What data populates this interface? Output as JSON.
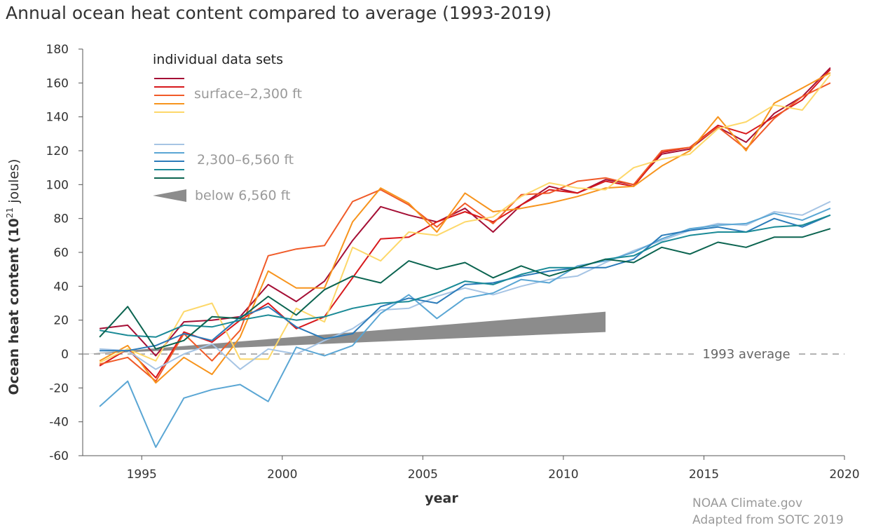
{
  "title": "Annual ocean heat content compared to average (1993-2019)",
  "credit": {
    "line1": "NOAA Climate.gov",
    "line2": "Adapted from SOTC 2019"
  },
  "chart_data": {
    "type": "line",
    "title": "Annual ocean heat content compared to average (1993-2019)",
    "xlabel": "year",
    "ylabel_main": "Ocean heat content (10",
    "ylabel_sup": "21",
    "ylabel_end": " joules)",
    "xlim": [
      1992.9,
      2020
    ],
    "ylim": [
      -60,
      180
    ],
    "xticks": [
      1995,
      2000,
      2005,
      2010,
      2015,
      2020
    ],
    "yticks": [
      -60,
      -40,
      -20,
      0,
      20,
      40,
      60,
      80,
      100,
      120,
      140,
      160,
      180
    ],
    "grid": false,
    "reference_line": {
      "y": 0,
      "label": "1993 average"
    },
    "legend": {
      "heading": "individual data sets",
      "groups": [
        {
          "label": "surface–2,300 ft",
          "colors": [
            "#a50f35",
            "#d7191c",
            "#f05a28",
            "#f7941d",
            "#fdd86a"
          ]
        },
        {
          "label": "2,300–6,560 ft",
          "colors": [
            "#a6c4e4",
            "#5aa6d4",
            "#2b7bb9",
            "#1a8a96",
            "#0b6450"
          ]
        },
        {
          "label": "below 6,560 ft",
          "colors": [
            "#8c8c8c"
          ]
        }
      ]
    },
    "x": [
      1993.5,
      1994.5,
      1995.5,
      1996.5,
      1997.5,
      1998.5,
      1999.5,
      2000.5,
      2001.5,
      2002.5,
      2003.5,
      2004.5,
      2005.5,
      2006.5,
      2007.5,
      2008.5,
      2009.5,
      2010.5,
      2011.5,
      2012.5,
      2013.5,
      2014.5,
      2015.5,
      2016.5,
      2017.5,
      2018.5,
      2019.5
    ],
    "series": [
      {
        "group": "surface–2,300 ft",
        "color": "#a50f35",
        "values": [
          15,
          17,
          -1,
          19,
          20,
          22,
          41,
          31,
          43,
          67,
          87,
          82,
          78,
          86,
          72,
          88,
          99,
          95,
          103,
          100,
          118,
          121,
          134,
          125,
          142,
          152,
          169
        ]
      },
      {
        "group": "surface–2,300 ft",
        "color": "#d7191c",
        "values": [
          -7,
          3,
          -14,
          13,
          7,
          20,
          30,
          15,
          22,
          45,
          68,
          69,
          78,
          84,
          78,
          88,
          97,
          95,
          102,
          99,
          119,
          122,
          135,
          130,
          140,
          150,
          168
        ]
      },
      {
        "group": "surface–2,300 ft",
        "color": "#f05a28",
        "values": [
          -6,
          -2,
          -16,
          12,
          -4,
          14,
          58,
          62,
          64,
          90,
          97,
          88,
          75,
          89,
          77,
          94,
          95,
          102,
          104,
          100,
          120,
          122,
          134,
          121,
          139,
          152,
          160
        ]
      },
      {
        "group": "surface–2,300 ft",
        "color": "#f7941d",
        "values": [
          -4,
          5,
          -17,
          -2,
          -12,
          10,
          49,
          39,
          39,
          78,
          98,
          89,
          72,
          95,
          84,
          86,
          89,
          93,
          98,
          99,
          111,
          120,
          140,
          120,
          148,
          157,
          166
        ]
      },
      {
        "group": "surface–2,300 ft",
        "color": "#fdd86a",
        "values": [
          -5,
          3,
          -4,
          25,
          30,
          -3,
          -3,
          27,
          19,
          63,
          55,
          72,
          70,
          78,
          81,
          93,
          101,
          98,
          97,
          110,
          115,
          118,
          133,
          137,
          147,
          144,
          165
        ]
      },
      {
        "group": "2,300–6,560 ft",
        "color": "#a6c4e4",
        "values": [
          3,
          2,
          -9,
          0,
          6,
          -9,
          3,
          0,
          8,
          15,
          26,
          27,
          34,
          39,
          35,
          40,
          44,
          46,
          54,
          61,
          67,
          73,
          77,
          76,
          84,
          82,
          90
        ]
      },
      {
        "group": "2,300–6,560 ft",
        "color": "#5aa6d4",
        "values": [
          -31,
          -16,
          -55,
          -26,
          -21,
          -18,
          -28,
          4,
          -1,
          5,
          24,
          35,
          21,
          33,
          36,
          44,
          42,
          52,
          55,
          60,
          68,
          74,
          76,
          77,
          83,
          79,
          86
        ]
      },
      {
        "group": "2,300–6,560 ft",
        "color": "#2b7bb9",
        "values": [
          2,
          2,
          5,
          12,
          8,
          22,
          28,
          16,
          9,
          12,
          28,
          33,
          30,
          41,
          42,
          46,
          49,
          51,
          51,
          56,
          70,
          73,
          75,
          72,
          80,
          75,
          82
        ]
      },
      {
        "group": "2,300–6,560 ft",
        "color": "#1a8a96",
        "values": [
          14,
          11,
          10,
          17,
          16,
          20,
          23,
          20,
          22,
          27,
          30,
          31,
          36,
          43,
          41,
          47,
          51,
          51,
          56,
          58,
          66,
          70,
          72,
          72,
          75,
          76,
          82
        ]
      },
      {
        "group": "2,300–6,560 ft",
        "color": "#0b6450",
        "values": [
          10,
          28,
          3,
          8,
          22,
          21,
          34,
          23,
          38,
          46,
          42,
          55,
          50,
          54,
          45,
          52,
          46,
          51,
          56,
          54,
          63,
          59,
          66,
          63,
          69,
          69,
          74
        ]
      }
    ],
    "deep_wedge": {
      "group": "below 6,560 ft",
      "color": "#8c8c8c",
      "x": [
        1993,
        2011.5
      ],
      "lower": [
        0,
        13
      ],
      "upper": [
        0,
        25
      ]
    }
  }
}
